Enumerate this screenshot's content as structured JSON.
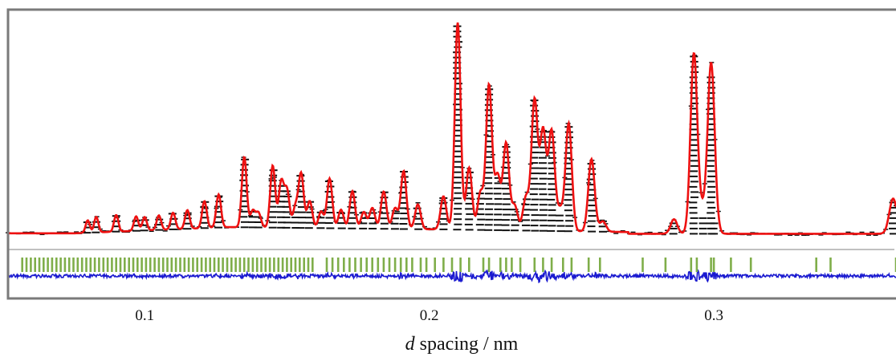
{
  "chart_data": {
    "type": "line",
    "xlabel_symbol": "d",
    "xlabel_rest": " spacing / nm",
    "xlim": [
      0.052,
      0.364
    ],
    "xticks": [
      {
        "value": 0.1,
        "label": "0.1"
      },
      {
        "value": 0.2,
        "label": "0.2"
      },
      {
        "value": 0.3,
        "label": "0.3"
      }
    ],
    "grid": false,
    "legend": "none",
    "colors": {
      "observed": "#111111",
      "calculated": "#ee1111",
      "difference": "#1a1ad0",
      "reflection_ticks": "#7fae4a",
      "frame": "#7a7a7a",
      "separator": "#9a9a9a"
    },
    "peaks": [
      {
        "d": 0.08,
        "h": 0.06
      },
      {
        "d": 0.083,
        "h": 0.075
      },
      {
        "d": 0.09,
        "h": 0.08
      },
      {
        "d": 0.097,
        "h": 0.07
      },
      {
        "d": 0.1,
        "h": 0.065
      },
      {
        "d": 0.105,
        "h": 0.07
      },
      {
        "d": 0.11,
        "h": 0.08
      },
      {
        "d": 0.115,
        "h": 0.09
      },
      {
        "d": 0.121,
        "h": 0.13
      },
      {
        "d": 0.126,
        "h": 0.16
      },
      {
        "d": 0.135,
        "h": 0.34
      },
      {
        "d": 0.138,
        "h": 0.08
      },
      {
        "d": 0.14,
        "h": 0.07
      },
      {
        "d": 0.145,
        "h": 0.3
      },
      {
        "d": 0.148,
        "h": 0.22
      },
      {
        "d": 0.15,
        "h": 0.18
      },
      {
        "d": 0.153,
        "h": 0.1
      },
      {
        "d": 0.155,
        "h": 0.26
      },
      {
        "d": 0.158,
        "h": 0.13
      },
      {
        "d": 0.162,
        "h": 0.08
      },
      {
        "d": 0.165,
        "h": 0.24
      },
      {
        "d": 0.169,
        "h": 0.09
      },
      {
        "d": 0.173,
        "h": 0.18
      },
      {
        "d": 0.177,
        "h": 0.08
      },
      {
        "d": 0.18,
        "h": 0.1
      },
      {
        "d": 0.184,
        "h": 0.18
      },
      {
        "d": 0.188,
        "h": 0.1
      },
      {
        "d": 0.191,
        "h": 0.28
      },
      {
        "d": 0.196,
        "h": 0.12
      },
      {
        "d": 0.205,
        "h": 0.16
      },
      {
        "d": 0.21,
        "h": 1.0
      },
      {
        "d": 0.214,
        "h": 0.3
      },
      {
        "d": 0.218,
        "h": 0.18
      },
      {
        "d": 0.221,
        "h": 0.7
      },
      {
        "d": 0.224,
        "h": 0.26
      },
      {
        "d": 0.227,
        "h": 0.42
      },
      {
        "d": 0.23,
        "h": 0.12
      },
      {
        "d": 0.234,
        "h": 0.16
      },
      {
        "d": 0.237,
        "h": 0.63
      },
      {
        "d": 0.24,
        "h": 0.48
      },
      {
        "d": 0.243,
        "h": 0.48
      },
      {
        "d": 0.246,
        "h": 0.1
      },
      {
        "d": 0.249,
        "h": 0.52
      },
      {
        "d": 0.257,
        "h": 0.35
      },
      {
        "d": 0.261,
        "h": 0.05
      },
      {
        "d": 0.286,
        "h": 0.07
      },
      {
        "d": 0.293,
        "h": 0.87
      },
      {
        "d": 0.296,
        "h": 0.1
      },
      {
        "d": 0.299,
        "h": 0.78
      },
      {
        "d": 0.3,
        "h": 0.06
      },
      {
        "d": 0.363,
        "h": 0.17
      }
    ],
    "reflection_ticks": [
      0.057,
      0.0585,
      0.06,
      0.0615,
      0.063,
      0.0645,
      0.066,
      0.0675,
      0.069,
      0.0705,
      0.072,
      0.0735,
      0.075,
      0.0765,
      0.078,
      0.0795,
      0.081,
      0.0825,
      0.084,
      0.0855,
      0.087,
      0.0885,
      0.09,
      0.0915,
      0.093,
      0.0945,
      0.096,
      0.0975,
      0.099,
      0.1005,
      0.102,
      0.1035,
      0.105,
      0.1065,
      0.108,
      0.1095,
      0.111,
      0.1125,
      0.114,
      0.1155,
      0.117,
      0.1185,
      0.12,
      0.1215,
      0.123,
      0.1245,
      0.126,
      0.1275,
      0.129,
      0.1305,
      0.132,
      0.1335,
      0.135,
      0.1365,
      0.138,
      0.1395,
      0.141,
      0.1425,
      0.144,
      0.1455,
      0.147,
      0.1485,
      0.15,
      0.1515,
      0.153,
      0.1545,
      0.156,
      0.1575,
      0.159,
      0.164,
      0.166,
      0.168,
      0.17,
      0.172,
      0.174,
      0.176,
      0.178,
      0.18,
      0.182,
      0.184,
      0.186,
      0.188,
      0.19,
      0.192,
      0.194,
      0.197,
      0.199,
      0.202,
      0.205,
      0.208,
      0.211,
      0.214,
      0.219,
      0.221,
      0.225,
      0.227,
      0.229,
      0.232,
      0.237,
      0.24,
      0.243,
      0.247,
      0.25,
      0.256,
      0.26,
      0.275,
      0.283,
      0.292,
      0.294,
      0.299,
      0.3,
      0.306,
      0.313,
      0.336,
      0.341,
      0.364
    ]
  }
}
